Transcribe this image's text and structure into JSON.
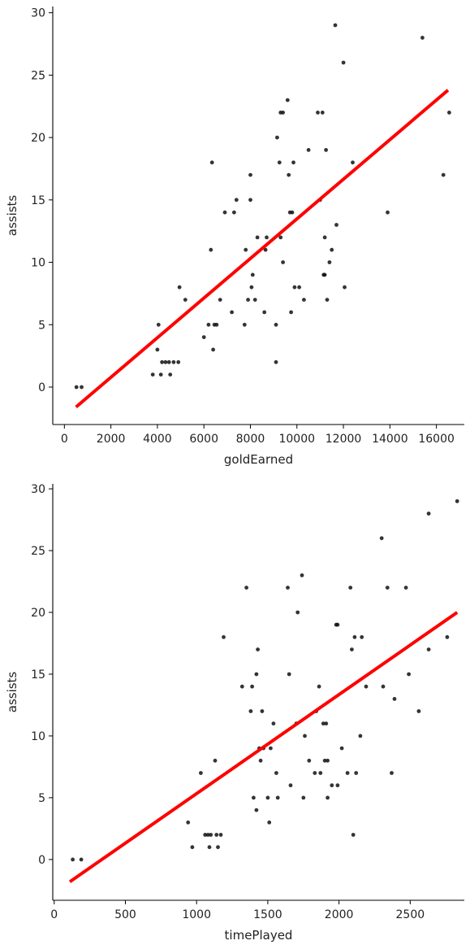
{
  "chart_data": [
    {
      "type": "scatter",
      "xlabel": "goldEarned",
      "ylabel": "assists",
      "xlim": [
        -500,
        17200
      ],
      "ylim": [
        -3,
        30.5
      ],
      "xticks": [
        0,
        2000,
        4000,
        6000,
        8000,
        10000,
        12000,
        14000,
        16000
      ],
      "yticks": [
        0,
        5,
        10,
        15,
        20,
        25,
        30
      ],
      "colors": {
        "points": "#111111",
        "fit_line": "#ff0000"
      },
      "grid": false,
      "points": [
        [
          520,
          0
        ],
        [
          740,
          0
        ],
        [
          3800,
          1
        ],
        [
          4000,
          3
        ],
        [
          4050,
          5
        ],
        [
          4150,
          1
        ],
        [
          4200,
          2
        ],
        [
          4350,
          2
        ],
        [
          4500,
          2
        ],
        [
          4550,
          1
        ],
        [
          4700,
          2
        ],
        [
          4900,
          2
        ],
        [
          4950,
          8
        ],
        [
          5200,
          7
        ],
        [
          6000,
          4
        ],
        [
          6200,
          5
        ],
        [
          6300,
          11
        ],
        [
          6350,
          18
        ],
        [
          6400,
          3
        ],
        [
          6450,
          5
        ],
        [
          6550,
          5
        ],
        [
          6700,
          7
        ],
        [
          6900,
          14
        ],
        [
          7200,
          6
        ],
        [
          7300,
          14
        ],
        [
          7400,
          15
        ],
        [
          7750,
          5
        ],
        [
          7800,
          11
        ],
        [
          7900,
          7
        ],
        [
          8000,
          17
        ],
        [
          8000,
          15
        ],
        [
          8050,
          8
        ],
        [
          8100,
          9
        ],
        [
          8200,
          7
        ],
        [
          8300,
          12
        ],
        [
          8600,
          6
        ],
        [
          8650,
          11
        ],
        [
          8700,
          12
        ],
        [
          9100,
          2
        ],
        [
          9100,
          5
        ],
        [
          9150,
          20
        ],
        [
          9250,
          18
        ],
        [
          9300,
          12
        ],
        [
          9300,
          22
        ],
        [
          9400,
          22
        ],
        [
          9400,
          10
        ],
        [
          9600,
          23
        ],
        [
          9650,
          17
        ],
        [
          9700,
          14
        ],
        [
          9750,
          6
        ],
        [
          9800,
          14
        ],
        [
          9850,
          18
        ],
        [
          9900,
          8
        ],
        [
          10100,
          8
        ],
        [
          10300,
          7
        ],
        [
          10500,
          19
        ],
        [
          10900,
          22
        ],
        [
          11000,
          15
        ],
        [
          11100,
          22
        ],
        [
          11150,
          9
        ],
        [
          11200,
          9
        ],
        [
          11200,
          12
        ],
        [
          11250,
          19
        ],
        [
          11300,
          7
        ],
        [
          11400,
          10
        ],
        [
          11500,
          11
        ],
        [
          11650,
          29
        ],
        [
          11700,
          13
        ],
        [
          12000,
          26
        ],
        [
          12050,
          8
        ],
        [
          12400,
          18
        ],
        [
          13900,
          14
        ],
        [
          15400,
          28
        ],
        [
          16300,
          17
        ],
        [
          16550,
          22
        ]
      ],
      "fit": {
        "x": [
          500,
          16500
        ],
        "y": [
          -1.6,
          23.8
        ]
      }
    },
    {
      "type": "scatter",
      "xlabel": "timePlayed",
      "ylabel": "assists",
      "xlim": [
        -10,
        2880
      ],
      "ylim": [
        -3.3,
        30.4
      ],
      "xticks": [
        0,
        500,
        1000,
        1500,
        2000,
        2500
      ],
      "yticks": [
        0,
        5,
        10,
        15,
        20,
        25,
        30
      ],
      "colors": {
        "points": "#111111",
        "fit_line": "#ff0000"
      },
      "grid": false,
      "points": [
        [
          130,
          0
        ],
        [
          190,
          0
        ],
        [
          940,
          3
        ],
        [
          970,
          1
        ],
        [
          1030,
          7
        ],
        [
          1060,
          2
        ],
        [
          1080,
          2
        ],
        [
          1090,
          1
        ],
        [
          1100,
          2
        ],
        [
          1130,
          8
        ],
        [
          1140,
          2
        ],
        [
          1150,
          1
        ],
        [
          1170,
          2
        ],
        [
          1190,
          18
        ],
        [
          1320,
          14
        ],
        [
          1350,
          22
        ],
        [
          1380,
          12
        ],
        [
          1390,
          14
        ],
        [
          1400,
          5
        ],
        [
          1420,
          4
        ],
        [
          1420,
          15
        ],
        [
          1430,
          17
        ],
        [
          1440,
          9
        ],
        [
          1450,
          8
        ],
        [
          1460,
          12
        ],
        [
          1470,
          9
        ],
        [
          1500,
          5
        ],
        [
          1510,
          3
        ],
        [
          1520,
          9
        ],
        [
          1540,
          11
        ],
        [
          1560,
          7
        ],
        [
          1570,
          5
        ],
        [
          1640,
          22
        ],
        [
          1650,
          15
        ],
        [
          1660,
          6
        ],
        [
          1700,
          11
        ],
        [
          1710,
          20
        ],
        [
          1740,
          23
        ],
        [
          1750,
          5
        ],
        [
          1760,
          10
        ],
        [
          1790,
          8
        ],
        [
          1830,
          7
        ],
        [
          1840,
          12
        ],
        [
          1860,
          14
        ],
        [
          1870,
          7
        ],
        [
          1890,
          11
        ],
        [
          1900,
          8
        ],
        [
          1910,
          11
        ],
        [
          1920,
          5
        ],
        [
          1920,
          8
        ],
        [
          1950,
          6
        ],
        [
          1980,
          19
        ],
        [
          1990,
          19
        ],
        [
          1990,
          6
        ],
        [
          2020,
          9
        ],
        [
          2060,
          7
        ],
        [
          2080,
          22
        ],
        [
          2090,
          17
        ],
        [
          2100,
          2
        ],
        [
          2110,
          18
        ],
        [
          2120,
          7
        ],
        [
          2150,
          10
        ],
        [
          2160,
          18
        ],
        [
          2190,
          14
        ],
        [
          2300,
          26
        ],
        [
          2310,
          14
        ],
        [
          2340,
          22
        ],
        [
          2370,
          7
        ],
        [
          2390,
          13
        ],
        [
          2470,
          22
        ],
        [
          2490,
          15
        ],
        [
          2560,
          12
        ],
        [
          2630,
          17
        ],
        [
          2630,
          28
        ],
        [
          2760,
          18
        ],
        [
          2830,
          29
        ]
      ],
      "fit": {
        "x": [
          110,
          2830
        ],
        "y": [
          -1.8,
          20
        ]
      }
    }
  ]
}
